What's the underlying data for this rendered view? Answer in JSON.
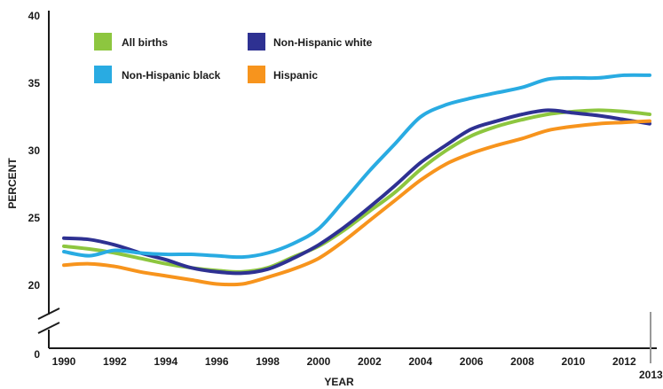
{
  "chart_data": {
    "type": "line",
    "title": "",
    "xlabel": "YEAR",
    "ylabel": "PERCENT",
    "x_ticks": [
      "1990",
      "1992",
      "1994",
      "1996",
      "1998",
      "2000",
      "2002",
      "2004",
      "2006",
      "2008",
      "2010",
      "2012"
    ],
    "x_end_label": "2013",
    "y_ticks": [
      "0",
      "20",
      "25",
      "30",
      "35",
      "40"
    ],
    "ylim": [
      20,
      40
    ],
    "xlim": [
      1990,
      2013
    ],
    "axis_break": true,
    "grid": false,
    "legend_position": "top-left",
    "x": [
      1990,
      1991,
      1992,
      1993,
      1994,
      1995,
      1996,
      1997,
      1998,
      1999,
      2000,
      2001,
      2002,
      2003,
      2004,
      2005,
      2006,
      2007,
      2008,
      2009,
      2010,
      2011,
      2012,
      2013
    ],
    "series": [
      {
        "name": "All births",
        "color": "#8dc63f",
        "values": [
          22.9,
          22.7,
          22.4,
          22.0,
          21.6,
          21.3,
          21.1,
          21.0,
          21.3,
          22.1,
          22.9,
          24.1,
          25.5,
          26.9,
          28.6,
          30.0,
          31.1,
          31.8,
          32.3,
          32.7,
          32.9,
          33.0,
          32.9,
          32.7
        ]
      },
      {
        "name": "Non-Hispanic white",
        "color": "#2e3192",
        "values": [
          23.5,
          23.4,
          23.0,
          22.4,
          21.9,
          21.3,
          21.0,
          20.9,
          21.2,
          22.0,
          23.0,
          24.3,
          25.8,
          27.4,
          29.1,
          30.4,
          31.6,
          32.2,
          32.7,
          33.0,
          32.8,
          32.6,
          32.3,
          32.0
        ]
      },
      {
        "name": "Non-Hispanic black",
        "color": "#29abe2",
        "values": [
          22.5,
          22.2,
          22.6,
          22.4,
          22.3,
          22.3,
          22.2,
          22.1,
          22.4,
          23.1,
          24.2,
          26.3,
          28.5,
          30.5,
          32.5,
          33.4,
          33.9,
          34.3,
          34.7,
          35.3,
          35.4,
          35.4,
          35.6,
          35.6
        ]
      },
      {
        "name": "Hispanic",
        "color": "#f7941d",
        "values": [
          21.5,
          21.6,
          21.4,
          21.0,
          20.7,
          20.4,
          20.1,
          20.1,
          20.6,
          21.2,
          22.0,
          23.3,
          24.8,
          26.3,
          27.8,
          29.0,
          29.8,
          30.4,
          30.9,
          31.5,
          31.8,
          32.0,
          32.1,
          32.2
        ]
      }
    ]
  }
}
